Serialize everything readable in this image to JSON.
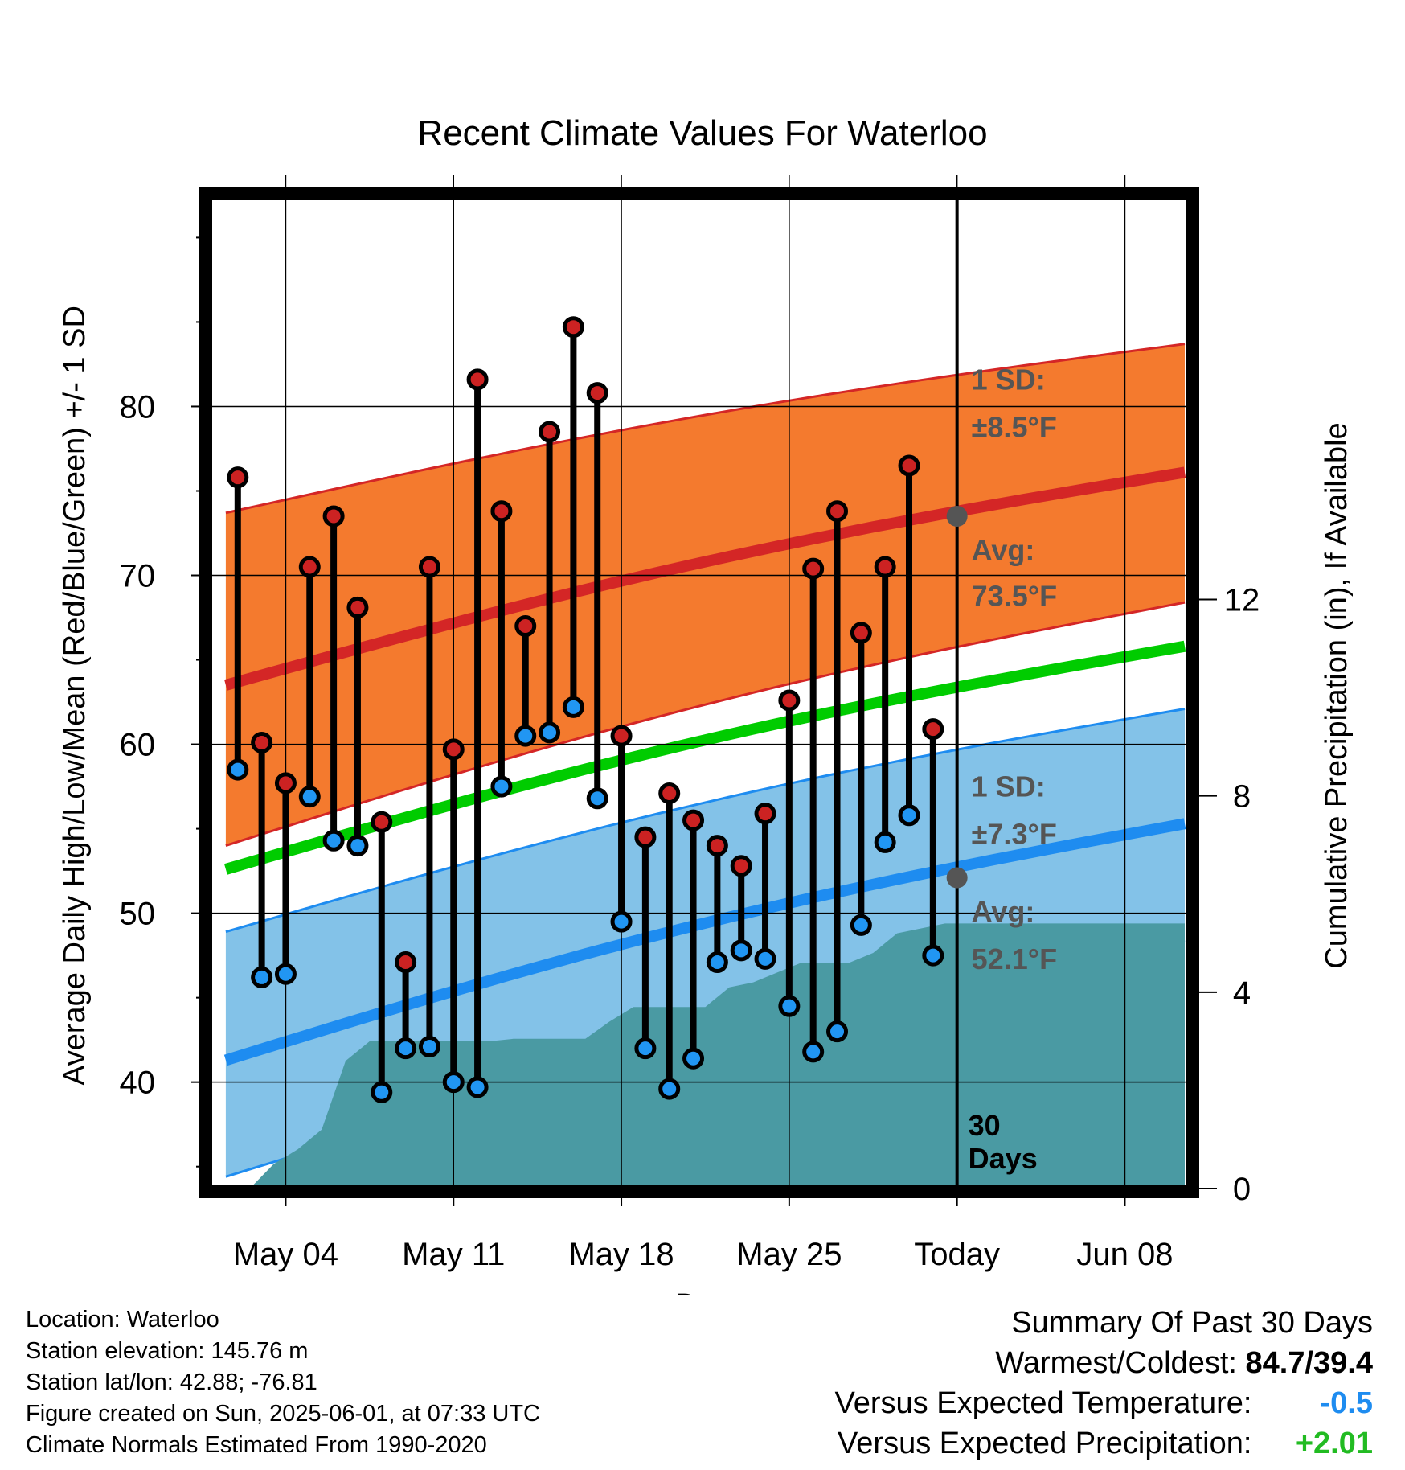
{
  "chart_data": {
    "type": "climate-range",
    "title": "Recent Climate Values For Waterloo",
    "xlabel": "Day",
    "ylabel_left": "Average Daily High/Low/Mean (Red/Blue/Green) +/- 1 SD",
    "ylabel_right": "Cumulative Precipitation (in), If Available",
    "x_ticks": [
      {
        "day": 3,
        "label": "May 04"
      },
      {
        "day": 10,
        "label": "May 11"
      },
      {
        "day": 17,
        "label": "May 18"
      },
      {
        "day": 24,
        "label": "May 25"
      },
      {
        "day": 31,
        "label": "Today"
      },
      {
        "day": 38,
        "label": "Jun 08"
      }
    ],
    "x_range": [
      -0.2,
      40.7
    ],
    "y_left_range": [
      33.7,
      92.4
    ],
    "y_left_ticks": [
      40,
      50,
      60,
      70,
      80
    ],
    "y_right_range": [
      0,
      20.2
    ],
    "y_right_ticks": [
      0,
      4,
      8,
      12
    ],
    "today_day": 31,
    "daily": {
      "day": [
        1,
        2,
        3,
        4,
        5,
        6,
        7,
        8,
        9,
        10,
        11,
        12,
        13,
        14,
        15,
        16,
        17,
        18,
        19,
        20,
        21,
        22,
        23,
        24,
        25,
        26,
        27,
        28,
        29,
        30
      ],
      "high": [
        75.8,
        60.1,
        57.7,
        70.5,
        73.5,
        68.1,
        55.4,
        47.1,
        70.5,
        59.7,
        81.6,
        73.8,
        67.0,
        78.5,
        84.7,
        80.8,
        60.5,
        54.5,
        57.1,
        55.5,
        54.0,
        52.8,
        55.9,
        62.6,
        70.4,
        73.8,
        66.6,
        70.5,
        76.5,
        60.9
      ],
      "low": [
        58.5,
        46.2,
        46.4,
        56.9,
        54.3,
        54.0,
        39.4,
        42.0,
        42.1,
        40.0,
        39.7,
        57.5,
        60.5,
        60.7,
        62.2,
        56.8,
        49.5,
        42.0,
        39.6,
        41.4,
        47.1,
        47.8,
        47.3,
        44.5,
        41.8,
        43.0,
        49.3,
        54.2,
        55.8,
        47.5
      ]
    },
    "normals": {
      "start_day": 0.5,
      "end_day": 40.5,
      "high_mean": [
        63.5,
        76.1
      ],
      "high_upper": [
        73.7,
        83.7
      ],
      "high_lower": [
        54.0,
        68.4
      ],
      "low_mean": [
        41.3,
        55.3
      ],
      "low_upper": [
        48.9,
        62.1
      ],
      "low_lower": [
        34.4,
        48.4
      ],
      "mean": [
        52.6,
        65.8
      ]
    },
    "precip_cumulative": {
      "day": [
        1.5,
        2.5,
        3.5,
        4.5,
        5.5,
        6.5,
        7.5,
        8.5,
        9.5,
        10.5,
        11.5,
        12.5,
        13.5,
        14.5,
        15.5,
        16.5,
        17.5,
        18.5,
        19.5,
        20.5,
        21.5,
        22.5,
        23.5,
        24.5,
        25.5,
        26.5,
        27.5,
        28.5,
        29.5,
        30.5,
        40.5
      ],
      "value": [
        0.0,
        0.5,
        0.8,
        1.2,
        2.6,
        3.0,
        3.0,
        3.0,
        3.0,
        3.0,
        3.0,
        3.05,
        3.05,
        3.05,
        3.05,
        3.4,
        3.7,
        3.7,
        3.7,
        3.7,
        4.1,
        4.2,
        4.4,
        4.6,
        4.6,
        4.6,
        4.8,
        5.2,
        5.3,
        5.4,
        5.4
      ]
    },
    "annotations": {
      "high_sd": "1 SD:",
      "high_sd_value": "±8.5°F",
      "high_avg": "Avg:",
      "high_avg_value": "73.5°F",
      "low_sd": "1 SD:",
      "low_sd_value": "±7.3°F",
      "low_avg": "Avg:",
      "low_avg_value": "52.1°F",
      "today_high_avg": 73.5,
      "today_low_avg": 52.1,
      "days_line1": "30",
      "days_line2": "Days"
    },
    "colors": {
      "high_band": "#f47a2e",
      "high_line": "#d42626",
      "low_band": "#83c2e8",
      "low_line": "#1e8cf0",
      "mean_line": "#00cc00",
      "precip": "#4a9aa3",
      "high_dot": "#cc2222",
      "low_dot": "#2196f3",
      "avg_dot": "#555555"
    }
  },
  "footer": {
    "location": "Location: Waterloo",
    "elevation": "Station elevation: 145.76 m",
    "latlon": "Station lat/lon: 42.88; -76.81",
    "created": "Figure created on Sun, 2025-06-01, at 07:33 UTC",
    "normals": "Climate Normals Estimated From 1990-2020"
  },
  "summary": {
    "title": "Summary Of Past 30 Days",
    "warmest_label": "Warmest/Coldest:",
    "warmest_value": "84.7/39.4",
    "temp_label": "Versus Expected Temperature:",
    "temp_value": "-0.5",
    "temp_color": "#1e8cf0",
    "precip_label": "Versus Expected Precipitation:",
    "precip_value": "+2.01",
    "precip_color": "#22bb22"
  }
}
